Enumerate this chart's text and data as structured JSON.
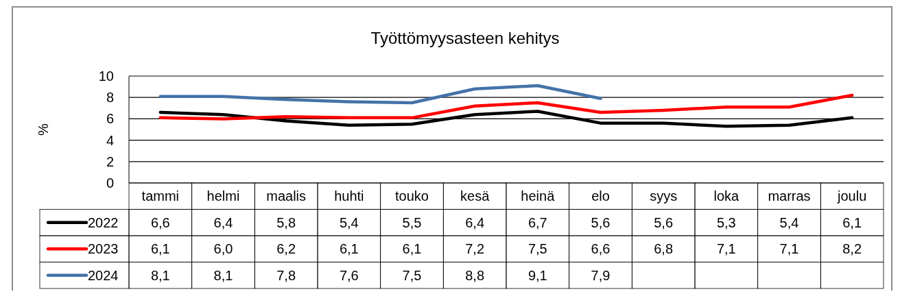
{
  "chart_data": {
    "type": "line",
    "title": "Työttömyysasteen kehitys",
    "ylabel": "%",
    "categories": [
      "tammi",
      "helmi",
      "maalis",
      "huhti",
      "touko",
      "kesä",
      "heinä",
      "elo",
      "syys",
      "loka",
      "marras",
      "joulu"
    ],
    "series": [
      {
        "name": "2022",
        "color": "#000000",
        "values": [
          6.6,
          6.4,
          5.8,
          5.4,
          5.5,
          6.4,
          6.7,
          5.6,
          5.6,
          5.3,
          5.4,
          6.1
        ],
        "value_labels": [
          "6,6",
          "6,4",
          "5,8",
          "5,4",
          "5,5",
          "6,4",
          "6,7",
          "5,6",
          "5,6",
          "5,3",
          "5,4",
          "6,1"
        ]
      },
      {
        "name": "2023",
        "color": "#ff0000",
        "values": [
          6.1,
          6.0,
          6.2,
          6.1,
          6.1,
          7.2,
          7.5,
          6.6,
          6.8,
          7.1,
          7.1,
          8.2
        ],
        "value_labels": [
          "6,1",
          "6,0",
          "6,2",
          "6,1",
          "6,1",
          "7,2",
          "7,5",
          "6,6",
          "6,8",
          "7,1",
          "7,1",
          "8,2"
        ]
      },
      {
        "name": "2024",
        "color": "#4472a8",
        "values": [
          8.1,
          8.1,
          7.8,
          7.6,
          7.5,
          8.8,
          9.1,
          7.9,
          null,
          null,
          null,
          null
        ],
        "value_labels": [
          "8,1",
          "8,1",
          "7,8",
          "7,6",
          "7,5",
          "8,8",
          "9,1",
          "7,9",
          null,
          null,
          null,
          null
        ]
      }
    ],
    "ylim": [
      0,
      10
    ],
    "yticks": [
      0,
      2,
      4,
      6,
      8,
      10
    ],
    "grid": "y",
    "legend": "bottom",
    "marker": "none",
    "line_style": "solid"
  }
}
